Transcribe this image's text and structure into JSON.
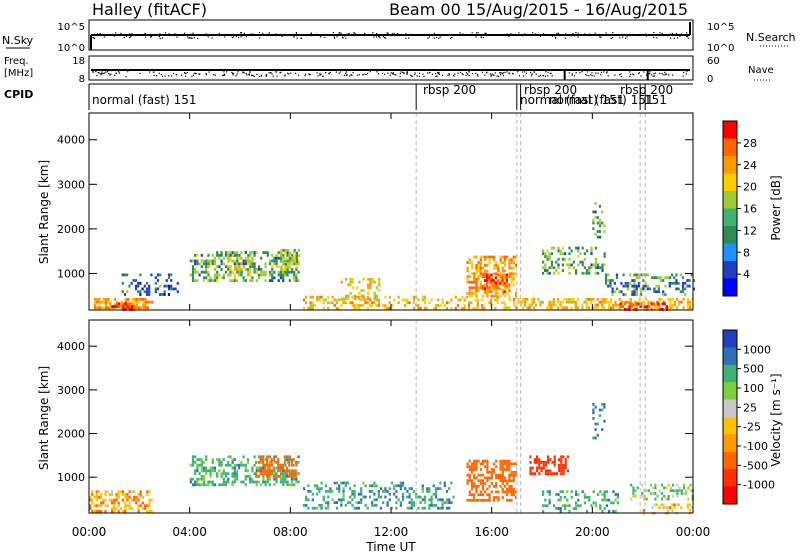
{
  "header": {
    "site": "Halley (fitACF)",
    "beam_date": "Beam 00  15/Aug/2015 - 16/Aug/2015"
  },
  "noise_panel": {
    "left_label": "N.Sky",
    "left_ticks": [
      "10^5",
      "10^0"
    ],
    "right_ticks": [
      "10^5",
      "10^0"
    ],
    "right_label": "N.Search"
  },
  "freq_panel": {
    "left_label_1": "Freq.",
    "left_label_2": "[MHz]",
    "left_ticks": [
      "18",
      "8"
    ],
    "right_ticks": [
      "60",
      "0"
    ],
    "right_label": "Nave"
  },
  "cpid_panel": {
    "label": "CPID",
    "segments": [
      {
        "start_h": 0.0,
        "text": "normal (fast) 151"
      },
      {
        "start_h": 13.0,
        "text": "rbsp 200"
      },
      {
        "start_h": 17.0,
        "text": "rbsp 200"
      },
      {
        "start_h": 17.0,
        "text": "normal (fast) 151"
      },
      {
        "start_h": 18.6,
        "text": "normal (fast) 151"
      },
      {
        "start_h": 21.0,
        "text": "rbsp 200"
      },
      {
        "start_h": 22.2,
        "text": "151"
      }
    ]
  },
  "x_axis": {
    "ticks": [
      "00:00",
      "04:00",
      "08:00",
      "12:00",
      "16:00",
      "20:00",
      "00:00"
    ],
    "label": "Time UT"
  },
  "power_panel": {
    "ylabel": "Slant Range [km]",
    "yticks": [
      "4000",
      "3000",
      "2000",
      "1000"
    ],
    "colorbar_label": "Power [dB]",
    "colorbar_ticks": [
      "28",
      "24",
      "20",
      "16",
      "12",
      "8",
      "4"
    ],
    "colors": [
      "#ff0000",
      "#ff6600",
      "#ff9900",
      "#ffcc00",
      "#9acd32",
      "#3cb371",
      "#2e8b57",
      "#1e90ff",
      "#1f3fbf",
      "#0000ff"
    ]
  },
  "velocity_panel": {
    "ylabel": "Slant Range [km]",
    "yticks": [
      "4000",
      "3000",
      "2000",
      "1000"
    ],
    "colorbar_label": "Velocity [m s⁻¹]",
    "colorbar_ticks": [
      "1000",
      "500",
      "100",
      "25",
      "-25",
      "-100",
      "-500",
      "-1000"
    ],
    "colors": [
      "#1f3fbf",
      "#2e6fb5",
      "#3cb371",
      "#7cd13a",
      "#c8c8c8",
      "#ffc000",
      "#ff9900",
      "#ff6600",
      "#ff3000",
      "#ff0000"
    ]
  },
  "chart_data": {
    "type": "heatmap",
    "x_range_hours": [
      0,
      24
    ],
    "y_range_km": [
      180,
      4600
    ],
    "cpid_boundaries_hours": [
      13.0,
      17.0,
      17.15,
      21.9,
      22.1
    ],
    "power_blobs": [
      {
        "t0": 0.2,
        "t1": 2.5,
        "r0": 200,
        "r1": 450,
        "power_db": 22,
        "density": 0.6
      },
      {
        "t0": 0.8,
        "t1": 1.8,
        "r0": 200,
        "r1": 350,
        "power_db": 28,
        "density": 0.5
      },
      {
        "t0": 1.3,
        "t1": 3.5,
        "r0": 550,
        "r1": 1000,
        "power_db": 8,
        "density": 0.25
      },
      {
        "t0": 4.0,
        "t1": 8.3,
        "r0": 850,
        "r1": 1500,
        "power_db": 12,
        "density": 0.45
      },
      {
        "t0": 5.5,
        "t1": 6.5,
        "r0": 1000,
        "r1": 1500,
        "power_db": 16,
        "density": 0.5
      },
      {
        "t0": 7.6,
        "t1": 8.3,
        "r0": 1150,
        "r1": 1550,
        "power_db": 14,
        "density": 0.5
      },
      {
        "t0": 8.5,
        "t1": 16.5,
        "r0": 200,
        "r1": 500,
        "power_db": 20,
        "density": 0.35
      },
      {
        "t0": 10.0,
        "t1": 11.5,
        "r0": 400,
        "r1": 900,
        "power_db": 18,
        "density": 0.35
      },
      {
        "t0": 15.0,
        "t1": 17.0,
        "r0": 500,
        "r1": 1400,
        "power_db": 22,
        "density": 0.55
      },
      {
        "t0": 15.6,
        "t1": 16.6,
        "r0": 600,
        "r1": 1000,
        "power_db": 26,
        "density": 0.55
      },
      {
        "t0": 18.0,
        "t1": 20.5,
        "r0": 1000,
        "r1": 1600,
        "power_db": 12,
        "density": 0.35
      },
      {
        "t0": 20.0,
        "t1": 20.5,
        "r0": 1800,
        "r1": 2600,
        "power_db": 10,
        "density": 0.3
      },
      {
        "t0": 20.5,
        "t1": 24.0,
        "r0": 500,
        "r1": 1000,
        "power_db": 10,
        "density": 0.35
      },
      {
        "t0": 16.5,
        "t1": 24.0,
        "r0": 200,
        "r1": 450,
        "power_db": 20,
        "density": 0.5
      },
      {
        "t0": 21.0,
        "t1": 23.0,
        "r0": 200,
        "r1": 350,
        "power_db": 28,
        "density": 0.5
      }
    ],
    "velocity_blobs": [
      {
        "t0": 0.0,
        "t1": 2.5,
        "r0": 200,
        "r1": 700,
        "velocity": -80,
        "density": 0.45
      },
      {
        "t0": 4.0,
        "t1": 8.3,
        "r0": 850,
        "r1": 1500,
        "velocity": 60,
        "density": 0.45
      },
      {
        "t0": 6.6,
        "t1": 8.2,
        "r0": 1000,
        "r1": 1500,
        "velocity": -400,
        "density": 0.5
      },
      {
        "t0": 8.5,
        "t1": 14.5,
        "r0": 300,
        "r1": 900,
        "velocity": 80,
        "density": 0.35
      },
      {
        "t0": 15.0,
        "t1": 17.0,
        "r0": 500,
        "r1": 1400,
        "velocity": -400,
        "density": 0.55
      },
      {
        "t0": 17.5,
        "t1": 19.0,
        "r0": 1100,
        "r1": 1500,
        "velocity": -700,
        "density": 0.45
      },
      {
        "t0": 18.0,
        "t1": 21.0,
        "r0": 200,
        "r1": 700,
        "velocity": 60,
        "density": 0.3
      },
      {
        "t0": 20.0,
        "t1": 20.5,
        "r0": 1900,
        "r1": 2700,
        "velocity": 120,
        "density": 0.3
      },
      {
        "t0": 21.5,
        "t1": 24.0,
        "r0": 500,
        "r1": 850,
        "velocity": 10,
        "density": 0.35
      },
      {
        "t0": 22.0,
        "t1": 24.0,
        "r0": 200,
        "r1": 400,
        "velocity": -60,
        "density": 0.35
      }
    ]
  }
}
